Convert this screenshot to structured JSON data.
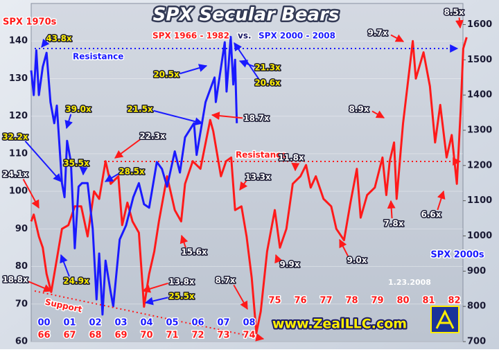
{
  "chart_data": {
    "type": "line",
    "title": "SPX Secular Bears",
    "ylabel": "SPX 1970s",
    "y2label": "SPX 2000s",
    "vs": "vs.",
    "labels": {
      "resistance_top": "Resistance",
      "resistance_mid": "Resistance",
      "support": "Support",
      "date": "1.23.2008",
      "website": "www.ZealLLC.com"
    },
    "ylim": [
      60,
      150
    ],
    "yticks": [
      60,
      70,
      80,
      90,
      100,
      110,
      120,
      130,
      140
    ],
    "y2lim": [
      700,
      1660
    ],
    "y2ticks": [
      700,
      800,
      900,
      1000,
      1100,
      1200,
      1300,
      1400,
      1500,
      1600
    ],
    "xlim": [
      1966,
      1983
    ],
    "xticks": [
      {
        "value": 1966,
        "label": "66"
      },
      {
        "value": 1967,
        "label": "67"
      },
      {
        "value": 1968,
        "label": "68"
      },
      {
        "value": 1969,
        "label": "69"
      },
      {
        "value": 1970,
        "label": "70"
      },
      {
        "value": 1971,
        "label": "71"
      },
      {
        "value": 1972,
        "label": "72"
      },
      {
        "value": 1973,
        "label": "73"
      },
      {
        "value": 1974,
        "label": "74"
      },
      {
        "value": 1975,
        "label": "75"
      },
      {
        "value": 1976,
        "label": "76"
      },
      {
        "value": 1977,
        "label": "77"
      },
      {
        "value": 1978,
        "label": "78"
      },
      {
        "value": 1979,
        "label": "79"
      },
      {
        "value": 1980,
        "label": "80"
      },
      {
        "value": 1981,
        "label": "81"
      },
      {
        "value": 1982,
        "label": "82"
      }
    ],
    "x2lim": [
      2000,
      2017
    ],
    "x2ticks": [
      {
        "value": 2000,
        "label": "00"
      },
      {
        "value": 2001,
        "label": "01"
      },
      {
        "value": 2002,
        "label": "02"
      },
      {
        "value": 2003,
        "label": "03"
      },
      {
        "value": 2004,
        "label": "04"
      },
      {
        "value": 2005,
        "label": "05"
      },
      {
        "value": 2006,
        "label": "06"
      },
      {
        "value": 2007,
        "label": "07"
      },
      {
        "value": 2008,
        "label": "08"
      }
    ],
    "series": [
      {
        "name": "SPX 1966 - 1982",
        "color": "#ff1a1a",
        "axis": "y",
        "xaxis": "x",
        "x": [
          1966.0,
          1966.1,
          1966.3,
          1966.45,
          1966.6,
          1966.78,
          1966.95,
          1967.2,
          1967.45,
          1967.7,
          1967.95,
          1968.2,
          1968.45,
          1968.65,
          1968.9,
          1969.1,
          1969.4,
          1969.55,
          1969.75,
          1969.95,
          1970.2,
          1970.4,
          1970.6,
          1970.8,
          1970.98,
          1971.3,
          1971.6,
          1971.85,
          1972.0,
          1972.3,
          1972.6,
          1972.98,
          1973.1,
          1973.4,
          1973.6,
          1973.8,
          1973.95,
          1974.2,
          1974.4,
          1974.6,
          1974.78,
          1974.95,
          1975.2,
          1975.5,
          1975.7,
          1975.95,
          1976.2,
          1976.5,
          1976.72,
          1976.9,
          1977.1,
          1977.4,
          1977.7,
          1977.9,
          1978.2,
          1978.45,
          1978.7,
          1978.85,
          1979.1,
          1979.4,
          1979.7,
          1979.85,
          1979.98,
          1980.15,
          1980.25,
          1980.5,
          1980.88,
          1981.0,
          1981.3,
          1981.55,
          1981.75,
          1981.95,
          1982.2,
          1982.4,
          1982.6,
          1982.75,
          1982.85,
          1982.98
        ],
        "values": [
          92,
          93.8,
          88,
          85,
          78,
          73.2,
          80,
          90,
          91,
          96,
          96,
          88,
          100,
          98,
          108,
          102,
          104,
          91,
          97,
          92,
          89,
          69.3,
          78,
          84,
          92,
          104,
          95,
          92,
          102,
          108,
          106,
          119,
          116,
          104,
          108,
          109,
          95,
          96,
          88,
          77,
          62.3,
          68,
          84,
          95,
          85,
          90,
          102,
          104,
          107,
          101,
          104,
          98,
          96,
          90,
          87,
          97,
          106,
          93,
          99,
          101,
          109,
          99,
          108,
          113,
          98,
          118,
          140,
          130,
          137,
          128,
          113,
          123,
          109,
          115,
          102,
          122,
          138,
          141
        ]
      },
      {
        "name": "SPX 2000 - 2008",
        "color": "#1a1aff",
        "axis": "y2",
        "xaxis": "x2",
        "x": [
          2000.0,
          2000.1,
          2000.2,
          2000.3,
          2000.45,
          2000.6,
          2000.75,
          2000.9,
          2001.0,
          2001.2,
          2001.3,
          2001.4,
          2001.55,
          2001.7,
          2001.85,
          2001.98,
          2002.2,
          2002.4,
          2002.55,
          2002.65,
          2002.78,
          2002.9,
          2003.1,
          2003.2,
          2003.45,
          2003.7,
          2003.98,
          2004.2,
          2004.4,
          2004.6,
          2004.9,
          2005.1,
          2005.3,
          2005.6,
          2005.8,
          2006.0,
          2006.35,
          2006.45,
          2006.8,
          2007.15,
          2007.2,
          2007.55,
          2007.62,
          2007.78,
          2007.88,
          2007.95,
          2008.02
        ],
        "values": [
          1470,
          1400,
          1527,
          1400,
          1480,
          1520,
          1380,
          1320,
          1370,
          1150,
          1110,
          1270,
          1210,
          965,
          1140,
          1150,
          1150,
          1020,
          820,
          950,
          777,
          930,
          840,
          800,
          990,
          1030,
          1110,
          1150,
          1090,
          1080,
          1210,
          1190,
          1140,
          1240,
          1180,
          1280,
          1320,
          1230,
          1380,
          1450,
          1380,
          1550,
          1410,
          1565,
          1430,
          1500,
          1320
        ]
      }
    ],
    "annotations": [
      "43.8x",
      "39.0x",
      "32.2x",
      "35.5x",
      "28.5x",
      "24.9x",
      "25.5x",
      "21.5x",
      "20.5x",
      "21.3x",
      "20.6x",
      "18.7x",
      "24.1x",
      "18.8x",
      "22.3x",
      "15.6x",
      "13.8x",
      "8.7x",
      "13.3x",
      "11.8x",
      "9.9x",
      "9.0x",
      "8.9x",
      "7.8x",
      "9.7x",
      "8.5x",
      "6.6x"
    ]
  }
}
